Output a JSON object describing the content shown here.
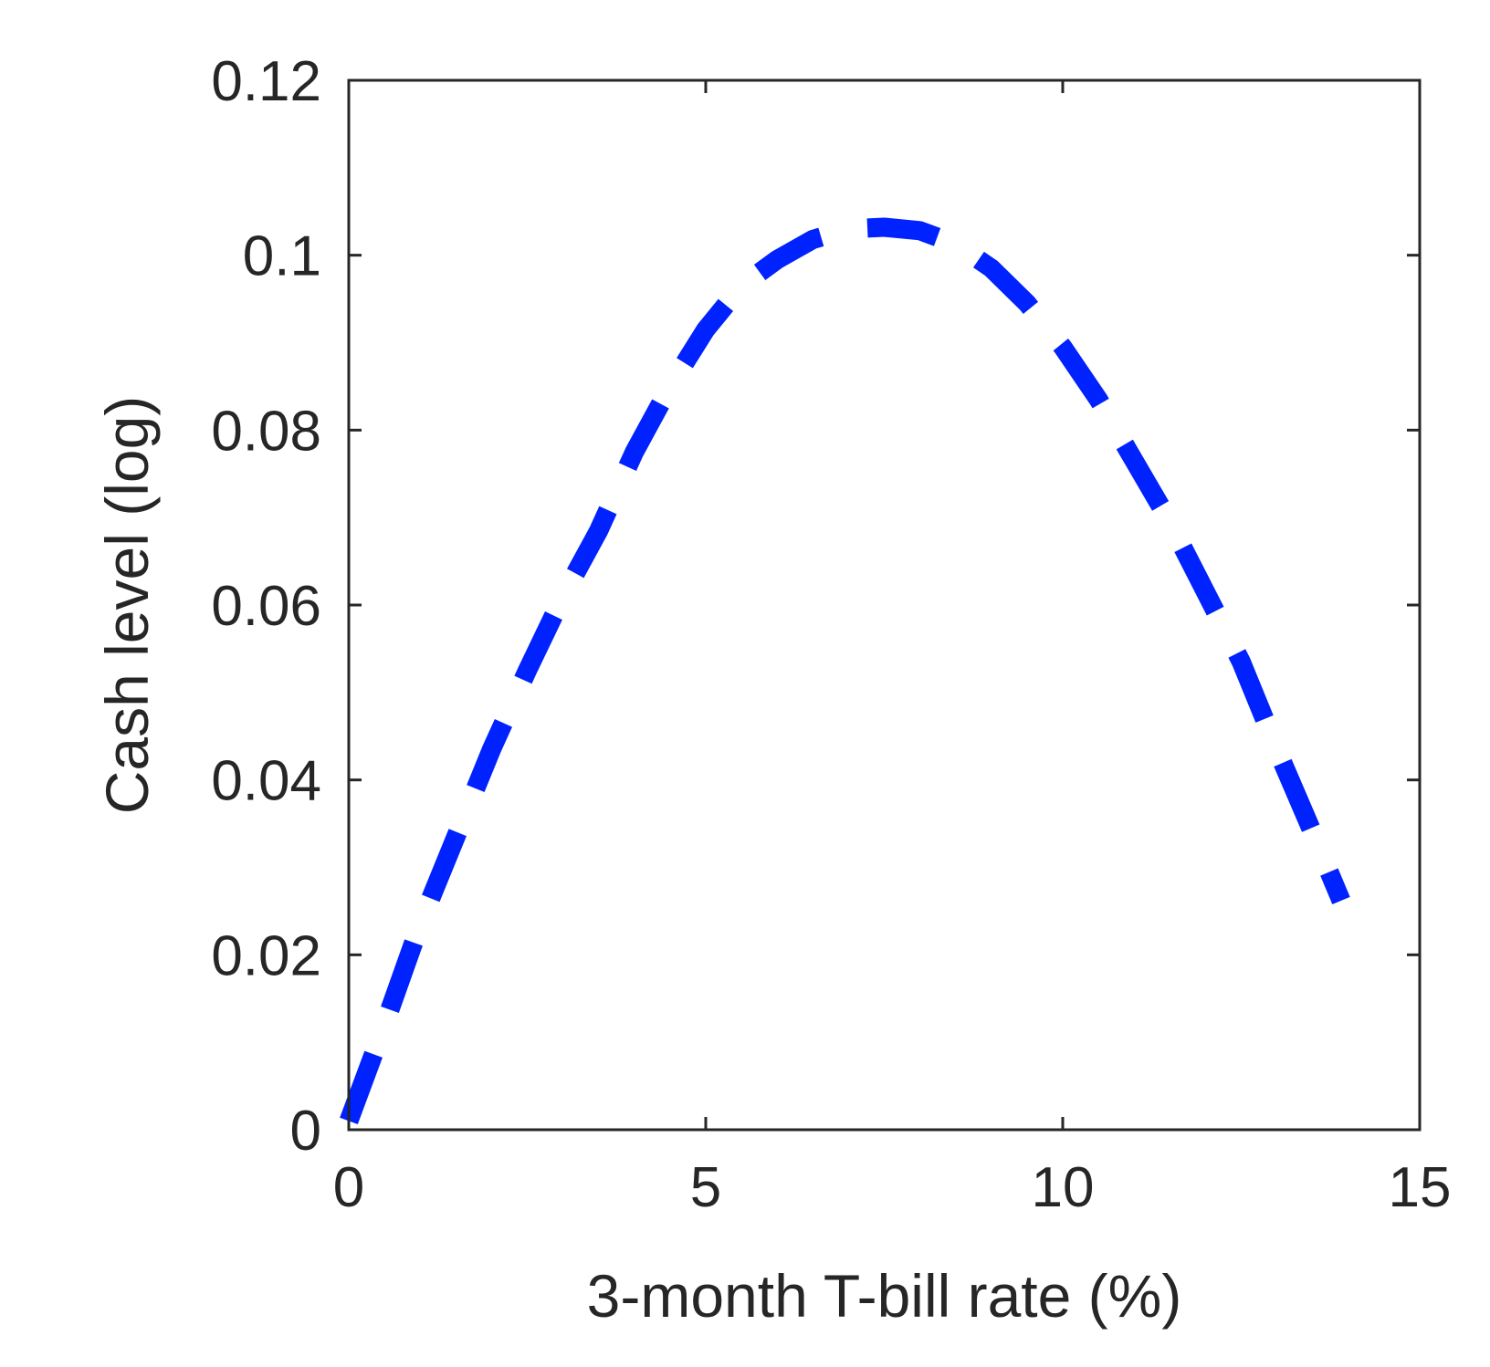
{
  "chart_data": {
    "type": "line",
    "title": "",
    "xlabel": "3-month T-bill rate (%)",
    "ylabel": "Cash level (log)",
    "xlim": [
      0,
      15
    ],
    "ylim": [
      0,
      0.12
    ],
    "xticks": [
      0,
      5,
      10,
      15
    ],
    "xtick_labels": [
      "0",
      "5",
      "10",
      "15"
    ],
    "yticks": [
      0,
      0.02,
      0.04,
      0.06,
      0.08,
      0.1,
      0.12
    ],
    "ytick_labels": [
      "0",
      "0.02",
      "0.04",
      "0.06",
      "0.08",
      "0.1",
      "0.12"
    ],
    "grid": false,
    "legend": "none",
    "series": [
      {
        "line_style": "dashed",
        "color": "#0022ff",
        "x": [
          0.0,
          0.5,
          1.0,
          1.5,
          2.0,
          2.5,
          3.0,
          3.5,
          4.0,
          4.5,
          5.0,
          5.5,
          6.0,
          6.5,
          7.0,
          7.5,
          8.0,
          8.5,
          9.0,
          9.5,
          10.0,
          10.5,
          11.0,
          11.5,
          12.0,
          12.5,
          13.0,
          13.5,
          13.9
        ],
        "y": [
          0.001,
          0.012,
          0.0235,
          0.0335,
          0.0435,
          0.0525,
          0.061,
          0.0685,
          0.0775,
          0.085,
          0.0915,
          0.0965,
          0.0995,
          0.1018,
          0.103,
          0.1032,
          0.1028,
          0.1013,
          0.0985,
          0.0945,
          0.0895,
          0.0835,
          0.0765,
          0.0695,
          0.0615,
          0.0535,
          0.0435,
          0.034,
          0.0262
        ]
      }
    ]
  }
}
